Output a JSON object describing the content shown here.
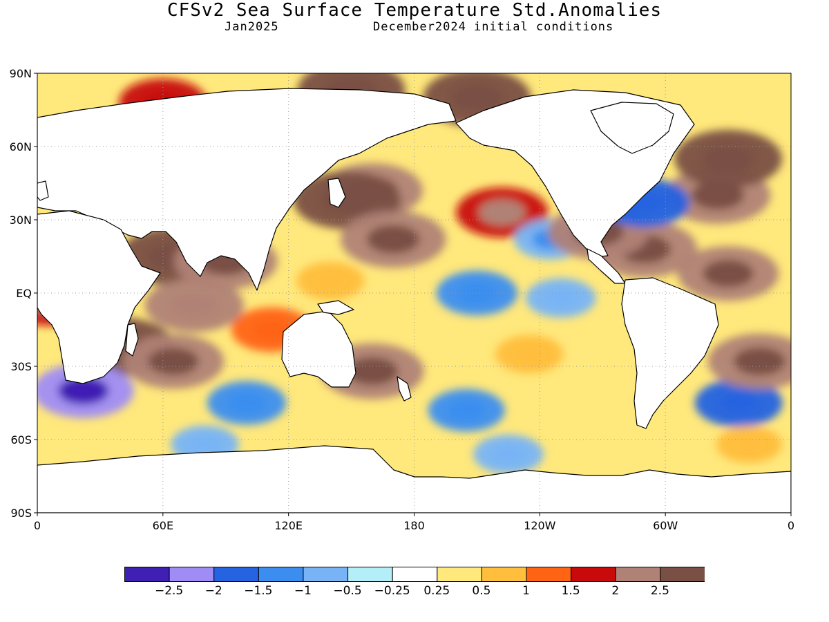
{
  "title": "CFSv2 Sea Surface Temperature Std.Anomalies",
  "valid_period": "Jan2025",
  "initial_conditions": "December2024 initial conditions",
  "colors": {
    "land": "#ffffff",
    "coast": "#000000",
    "grid": "#999999"
  },
  "map": {
    "projection": "equirectangular",
    "lon_range": [
      0,
      360
    ],
    "lat_range": [
      -90,
      90
    ],
    "lat_ticks": [
      {
        "lat": 90,
        "label": "90N"
      },
      {
        "lat": 60,
        "label": "60N"
      },
      {
        "lat": 30,
        "label": "30N"
      },
      {
        "lat": 0,
        "label": "EQ"
      },
      {
        "lat": -30,
        "label": "30S"
      },
      {
        "lat": -60,
        "label": "60S"
      },
      {
        "lat": -90,
        "label": "90S"
      }
    ],
    "lon_ticks": [
      {
        "lon": 0,
        "label": "0"
      },
      {
        "lon": 60,
        "label": "60E"
      },
      {
        "lon": 120,
        "label": "120E"
      },
      {
        "lon": 180,
        "label": "180"
      },
      {
        "lon": 240,
        "label": "120W"
      },
      {
        "lon": 300,
        "label": "60W"
      },
      {
        "lon": 360,
        "label": "0"
      }
    ],
    "grid": true
  },
  "colorbar": {
    "bins": [
      {
        "color": "#3f1fb4"
      },
      {
        "color": "#a08cf5"
      },
      {
        "color": "#2563e0"
      },
      {
        "color": "#3b8ef0"
      },
      {
        "color": "#78b4f5"
      },
      {
        "color": "#b4eef8"
      },
      {
        "color": "#ffffff"
      },
      {
        "color": "#ffe87c"
      },
      {
        "color": "#ffbe3c"
      },
      {
        "color": "#ff6414"
      },
      {
        "color": "#c80a0a"
      },
      {
        "color": "#b08276"
      },
      {
        "color": "#7a5044"
      }
    ],
    "labels": [
      "-2.5",
      "-2",
      "-1.5",
      "-1",
      "-0.5",
      "-0.25",
      "0.25",
      "0.5",
      "1",
      "1.5",
      "2",
      "2.5"
    ]
  },
  "anomaly_features": [
    {
      "region": "Arctic Ocean",
      "lon": 150,
      "lat": 83,
      "value": 2.8
    },
    {
      "region": "Barents Sea",
      "lon": 60,
      "lat": 78,
      "value": 1.6
    },
    {
      "region": "Arctic Pacific sector",
      "lon": 210,
      "lat": 80,
      "value": 2.7
    },
    {
      "region": "NW Pacific",
      "lon": 160,
      "lat": 42,
      "value": 2.2
    },
    {
      "region": "Kuroshio",
      "lon": 148,
      "lat": 38,
      "value": 2.6
    },
    {
      "region": "Subtropical N Pacific",
      "lon": 170,
      "lat": 22,
      "value": 2.4
    },
    {
      "region": "NE Pacific",
      "lon": 222,
      "lat": 33,
      "value": 1.8
    },
    {
      "region": "California coast",
      "lon": 245,
      "lat": 22,
      "value": -0.9
    },
    {
      "region": "Equatorial central Pacific",
      "lon": 210,
      "lat": 0,
      "value": -1.3
    },
    {
      "region": "Equatorial east Pacific",
      "lon": 250,
      "lat": -2,
      "value": -0.8
    },
    {
      "region": "SE Pacific",
      "lon": 235,
      "lat": -25,
      "value": 0.7
    },
    {
      "region": "S Pacific subtropics",
      "lon": 205,
      "lat": -48,
      "value": -1.1
    },
    {
      "region": "Tasman Sea",
      "lon": 160,
      "lat": -32,
      "value": 2.3
    },
    {
      "region": "Australia NW",
      "lon": 112,
      "lat": -15,
      "value": 1.3
    },
    {
      "region": "Arabian Sea",
      "lon": 65,
      "lat": 15,
      "value": 2.5
    },
    {
      "region": "Bay of Bengal",
      "lon": 90,
      "lat": 13,
      "value": 2.3
    },
    {
      "region": "Tropical Indian Ocean",
      "lon": 75,
      "lat": -5,
      "value": 2.1
    },
    {
      "region": "Mozambique Channel",
      "lon": 40,
      "lat": -22,
      "value": 2.5
    },
    {
      "region": "S Indian Ocean",
      "lon": 65,
      "lat": -28,
      "value": 2.2
    },
    {
      "region": "S Indian Ocean south",
      "lon": 100,
      "lat": -45,
      "value": -1.2
    },
    {
      "region": "Cape Agulhas",
      "lon": 22,
      "lat": -40,
      "value": -2.2
    },
    {
      "region": "SW Atlantic",
      "lon": 335,
      "lat": -45,
      "value": -1.6
    },
    {
      "region": "S Atlantic subtropics",
      "lon": 345,
      "lat": -28,
      "value": 2.3
    },
    {
      "region": "Caribbean",
      "lon": 290,
      "lat": 18,
      "value": 2.4
    },
    {
      "region": "Gulf of Mexico",
      "lon": 268,
      "lat": 25,
      "value": 2.2
    },
    {
      "region": "N Atlantic central",
      "lon": 325,
      "lat": 40,
      "value": 2.4
    },
    {
      "region": "N Atlantic subpolar",
      "lon": 330,
      "lat": 55,
      "value": 2.7
    },
    {
      "region": "Gulf Stream",
      "lon": 290,
      "lat": 37,
      "value": -1.7
    },
    {
      "region": "Tropical N Atlantic",
      "lon": 330,
      "lat": 8,
      "value": 2.2
    },
    {
      "region": "Gulf of Guinea",
      "lon": 5,
      "lat": -3,
      "value": 1.8
    },
    {
      "region": "Southern Ocean Pacific",
      "lon": 225,
      "lat": -66,
      "value": -0.8
    },
    {
      "region": "Southern Ocean Indian",
      "lon": 80,
      "lat": -62,
      "value": -0.7
    },
    {
      "region": "Southern Ocean Atlantic",
      "lon": 340,
      "lat": -62,
      "value": 0.6
    },
    {
      "region": "W Pacific warm pool",
      "lon": 140,
      "lat": 5,
      "value": 0.7
    }
  ]
}
